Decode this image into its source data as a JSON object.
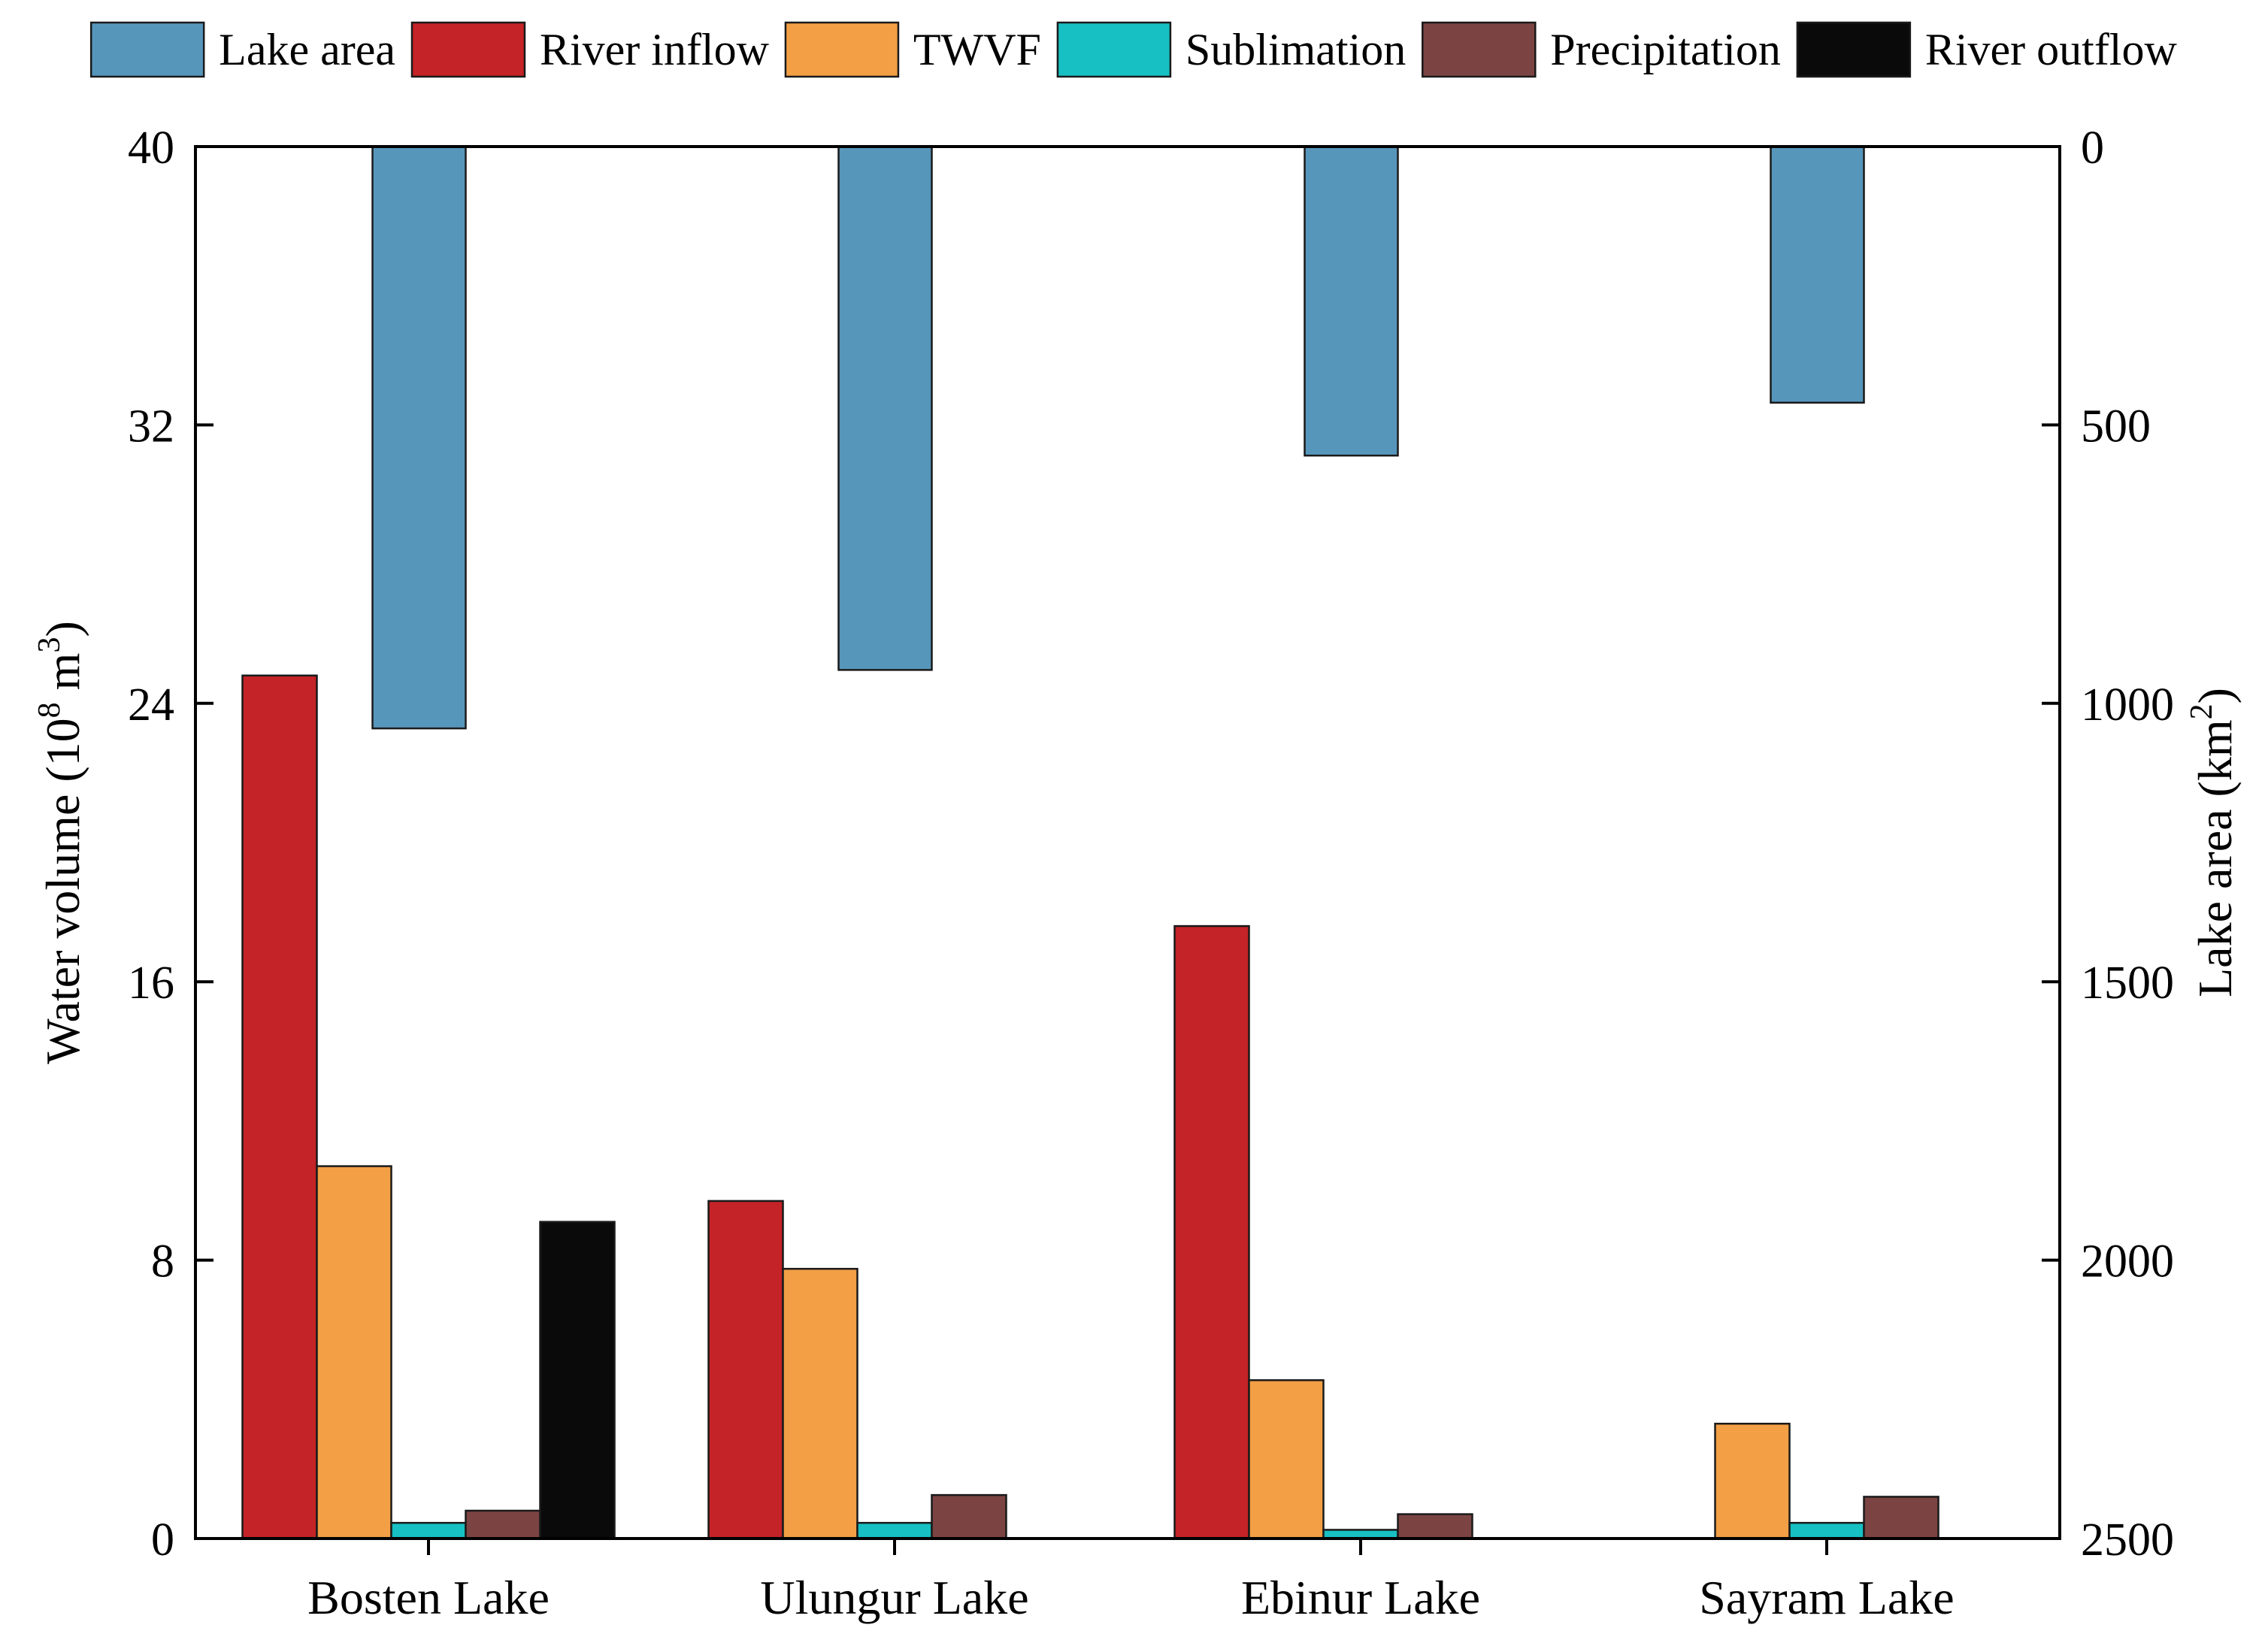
{
  "chart_data": {
    "type": "bar",
    "categories": [
      "Bosten Lake",
      "Ulungur Lake",
      "Ebinur Lake",
      "Sayram Lake"
    ],
    "series": [
      {
        "name": "River inflow",
        "axis": "left",
        "color": "#c42327",
        "values": [
          24.8,
          9.7,
          17.6,
          0
        ]
      },
      {
        "name": "TWVF",
        "axis": "left",
        "color": "#f29f45",
        "values": [
          10.7,
          7.75,
          4.55,
          3.3
        ]
      },
      {
        "name": "Sublimation",
        "axis": "left",
        "color": "#17c0c2",
        "values": [
          0.45,
          0.45,
          0.25,
          0.45
        ]
      },
      {
        "name": "Precipitation",
        "axis": "left",
        "color": "#7b4442",
        "values": [
          0.8,
          1.25,
          0.7,
          1.2
        ]
      },
      {
        "name": "River outflow",
        "axis": "left",
        "color": "#0a0a0a",
        "values": [
          9.1,
          0,
          0,
          0
        ]
      },
      {
        "name": "Lake area",
        "axis": "right",
        "color": "#5796bb",
        "values": [
          1045,
          940,
          555,
          460
        ]
      }
    ],
    "legend": [
      "Lake area",
      "River inflow",
      "TWVF",
      "Sublimation",
      "Precipitation",
      "River outflow"
    ],
    "legend_position": "top",
    "ylabel": "Water volume (10",
    "ylabel_exp": "8",
    "ylabel_mid": " m",
    "ylabel_exp2": "3",
    "ylabel_end": ")",
    "ylim": [
      0,
      40
    ],
    "yticks": [
      "0",
      "8",
      "16",
      "24",
      "32",
      "40"
    ],
    "y2label": "Lake area (km",
    "y2label_exp": "2",
    "y2label_end": ")",
    "y2lim": [
      2500,
      0
    ],
    "y2ticks": [
      "0",
      "500",
      "1000",
      "1500",
      "2000",
      "2500"
    ],
    "grid": false
  }
}
